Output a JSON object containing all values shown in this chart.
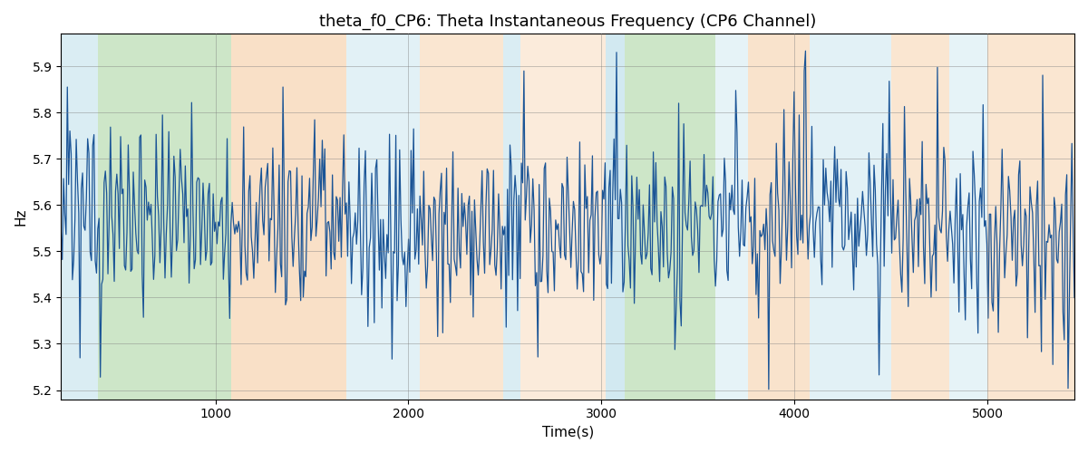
{
  "title": "theta_f0_CP6: Theta Instantaneous Frequency (CP6 Channel)",
  "xlabel": "Time(s)",
  "ylabel": "Hz",
  "xlim": [
    200,
    5450
  ],
  "ylim": [
    5.18,
    5.97
  ],
  "yticks": [
    5.2,
    5.3,
    5.4,
    5.5,
    5.6,
    5.7,
    5.8,
    5.9
  ],
  "xticks": [
    1000,
    2000,
    3000,
    4000,
    5000
  ],
  "line_color": "#1a5496",
  "line_width": 0.9,
  "seed": 42,
  "n_points": 800,
  "mean_freq": 5.55,
  "bg_bands": [
    {
      "xstart": 200,
      "xend": 390,
      "color": "#add8e6",
      "alpha": 0.45
    },
    {
      "xstart": 390,
      "xend": 1080,
      "color": "#90c987",
      "alpha": 0.45
    },
    {
      "xstart": 1080,
      "xend": 1680,
      "color": "#f5c89a",
      "alpha": 0.55
    },
    {
      "xstart": 1680,
      "xend": 2060,
      "color": "#add8e6",
      "alpha": 0.35
    },
    {
      "xstart": 2060,
      "xend": 2490,
      "color": "#f5c89a",
      "alpha": 0.45
    },
    {
      "xstart": 2490,
      "xend": 2580,
      "color": "#add8e6",
      "alpha": 0.45
    },
    {
      "xstart": 2580,
      "xend": 3020,
      "color": "#f5c89a",
      "alpha": 0.35
    },
    {
      "xstart": 3020,
      "xend": 3120,
      "color": "#add8e6",
      "alpha": 0.55
    },
    {
      "xstart": 3120,
      "xend": 3590,
      "color": "#90c987",
      "alpha": 0.45
    },
    {
      "xstart": 3590,
      "xend": 3760,
      "color": "#add8e6",
      "alpha": 0.3
    },
    {
      "xstart": 3760,
      "xend": 4080,
      "color": "#f5c89a",
      "alpha": 0.5
    },
    {
      "xstart": 4080,
      "xend": 4500,
      "color": "#add8e6",
      "alpha": 0.35
    },
    {
      "xstart": 4500,
      "xend": 4800,
      "color": "#f5c89a",
      "alpha": 0.45
    },
    {
      "xstart": 4800,
      "xend": 5000,
      "color": "#add8e6",
      "alpha": 0.3
    },
    {
      "xstart": 5000,
      "xend": 5450,
      "color": "#f5c89a",
      "alpha": 0.45
    }
  ],
  "figsize": [
    12,
    5
  ],
  "dpi": 100
}
